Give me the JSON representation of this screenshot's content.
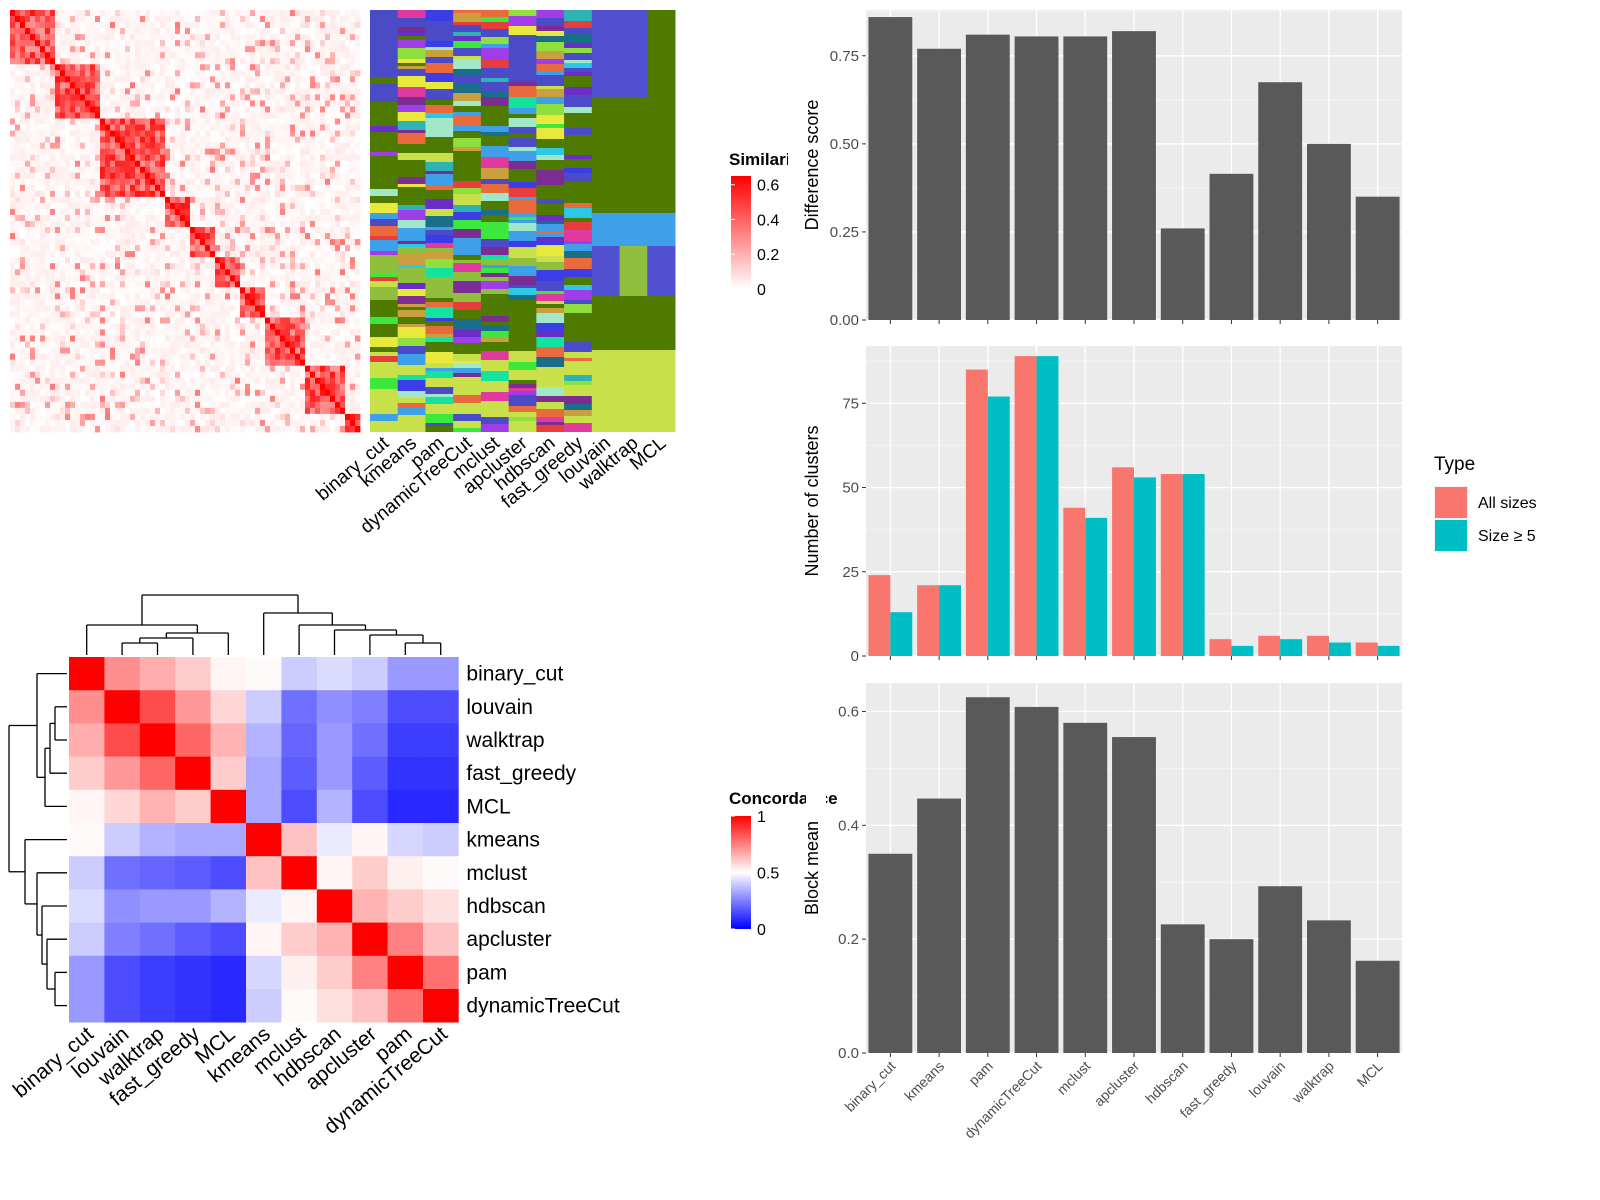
{
  "colors": {
    "panel_bg": "#EBEBEB",
    "grid_major": "#FFFFFF",
    "bar_fill": "#595959",
    "all_sizes": "#F8766D",
    "size_ge5": "#00BFC4",
    "sim_high": "#FF0000",
    "sim_low": "#FFFFFF",
    "conc_high": "#FF0000",
    "conc_mid": "#FFFFFF",
    "conc_low": "#0000FF"
  },
  "chart_data": [
    {
      "id": "similarity_heatmap",
      "type": "heatmap",
      "legend": {
        "title": "Similarity",
        "ticks": [
          "0",
          "0.2",
          "0.4",
          "0.6"
        ],
        "range": [
          0,
          0.65
        ]
      },
      "note_blocks_on_diagonal": true
    },
    {
      "id": "cluster_membership",
      "type": "heatmap",
      "columns": [
        "binary_cut",
        "kmeans",
        "pam",
        "dynamicTreeCut",
        "mclust",
        "apcluster",
        "hdbscan",
        "fast_greedy",
        "louvain",
        "walktrap",
        "MCL"
      ]
    },
    {
      "id": "difference_score",
      "type": "bar",
      "categories": [
        "binary_cut",
        "kmeans",
        "pam",
        "dynamicTreeCut",
        "mclust",
        "apcluster",
        "hdbscan",
        "fast_greedy",
        "louvain",
        "walktrap",
        "MCL"
      ],
      "values": [
        0.86,
        0.77,
        0.81,
        0.805,
        0.805,
        0.82,
        0.26,
        0.415,
        0.675,
        0.5,
        0.35
      ],
      "ylabel": "Difference score",
      "ylim": [
        0,
        0.88
      ],
      "yticks": [
        0.0,
        0.25,
        0.5,
        0.75
      ],
      "ytick_labels": [
        "0.00",
        "0.25",
        "0.50",
        "0.75"
      ]
    },
    {
      "id": "number_of_clusters",
      "type": "bar",
      "categories": [
        "binary_cut",
        "kmeans",
        "pam",
        "dynamicTreeCut",
        "mclust",
        "apcluster",
        "hdbscan",
        "fast_greedy",
        "louvain",
        "walktrap",
        "MCL"
      ],
      "series": [
        {
          "name": "All sizes",
          "values": [
            24,
            21,
            85,
            89,
            44,
            56,
            54,
            5,
            6,
            6,
            4
          ]
        },
        {
          "name": "Size ≥ 5",
          "values": [
            13,
            21,
            77,
            89,
            41,
            53,
            54,
            3,
            5,
            4,
            3
          ]
        }
      ],
      "ylabel": "Number of clusters",
      "ylim": [
        0,
        92
      ],
      "yticks": [
        0,
        25,
        50,
        75
      ],
      "ytick_labels": [
        "0",
        "25",
        "50",
        "75"
      ],
      "legend": {
        "title": "Type",
        "position": "right"
      }
    },
    {
      "id": "block_mean",
      "type": "bar",
      "categories": [
        "binary_cut",
        "kmeans",
        "pam",
        "dynamicTreeCut",
        "mclust",
        "apcluster",
        "hdbscan",
        "fast_greedy",
        "louvain",
        "walktrap",
        "MCL"
      ],
      "values": [
        0.35,
        0.447,
        0.625,
        0.608,
        0.58,
        0.555,
        0.226,
        0.2,
        0.293,
        0.233,
        0.162
      ],
      "ylabel": "Block mean",
      "ylim": [
        0,
        0.65
      ],
      "yticks": [
        0.0,
        0.2,
        0.4,
        0.6
      ],
      "ytick_labels": [
        "0.0",
        "0.2",
        "0.4",
        "0.6"
      ]
    },
    {
      "id": "concordance",
      "type": "heatmap",
      "rows": [
        "binary_cut",
        "louvain",
        "walktrap",
        "fast_greedy",
        "MCL",
        "kmeans",
        "mclust",
        "hdbscan",
        "apcluster",
        "pam",
        "dynamicTreeCut"
      ],
      "columns": [
        "binary_cut",
        "louvain",
        "walktrap",
        "fast_greedy",
        "MCL",
        "kmeans",
        "mclust",
        "hdbscan",
        "apcluster",
        "pam",
        "dynamicTreeCut"
      ],
      "values": [
        [
          1.0,
          0.72,
          0.66,
          0.6,
          0.52,
          0.51,
          0.4,
          0.43,
          0.4,
          0.3,
          0.3
        ],
        [
          0.72,
          1.0,
          0.85,
          0.7,
          0.58,
          0.4,
          0.22,
          0.28,
          0.25,
          0.15,
          0.15
        ],
        [
          0.66,
          0.85,
          1.0,
          0.8,
          0.65,
          0.35,
          0.2,
          0.3,
          0.22,
          0.12,
          0.12
        ],
        [
          0.6,
          0.7,
          0.8,
          1.0,
          0.6,
          0.33,
          0.18,
          0.3,
          0.18,
          0.1,
          0.1
        ],
        [
          0.52,
          0.58,
          0.65,
          0.6,
          1.0,
          0.33,
          0.15,
          0.35,
          0.15,
          0.08,
          0.08
        ],
        [
          0.51,
          0.4,
          0.35,
          0.33,
          0.33,
          1.0,
          0.62,
          0.46,
          0.52,
          0.42,
          0.4
        ],
        [
          0.4,
          0.22,
          0.2,
          0.18,
          0.15,
          0.62,
          1.0,
          0.52,
          0.6,
          0.53,
          0.51
        ],
        [
          0.43,
          0.28,
          0.3,
          0.3,
          0.35,
          0.46,
          0.52,
          1.0,
          0.65,
          0.6,
          0.56
        ],
        [
          0.4,
          0.25,
          0.22,
          0.18,
          0.15,
          0.52,
          0.6,
          0.65,
          1.0,
          0.75,
          0.62
        ],
        [
          0.3,
          0.15,
          0.12,
          0.1,
          0.08,
          0.42,
          0.53,
          0.6,
          0.75,
          1.0,
          0.78
        ],
        [
          0.3,
          0.15,
          0.12,
          0.1,
          0.08,
          0.4,
          0.51,
          0.56,
          0.62,
          0.78,
          1.0
        ]
      ],
      "legend": {
        "title": "Concordance",
        "ticks": [
          "0",
          "0.5",
          "1"
        ],
        "range": [
          0,
          1
        ]
      }
    }
  ]
}
